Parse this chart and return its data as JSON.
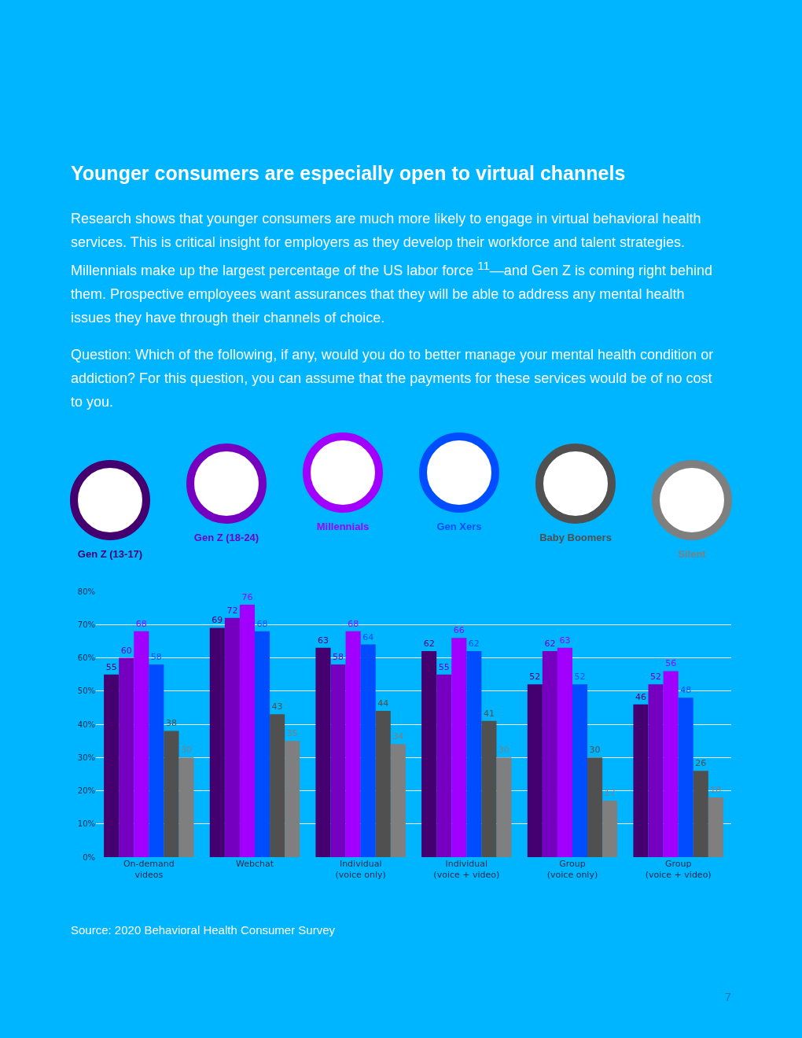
{
  "chart_data": {
    "type": "bar",
    "title": "Younger consumers are especially open to virtual channels",
    "subtitle": "Research shows that younger consumers are much more likely to engage in virtual behavioral health services. This is critical insight for employers as they develop their workforce and talent strategies. Millennials make up the largest percentage of the US labor force $^{11}$—and Gen Z is coming right behind them. Prospective employees want assurances that they will be able to address any mental health issues they have through their channels of choice.",
    "annotations": [
      "Question: Which of the following, if any, would you do to better manage your mental health condition or addiction? For this question, you can assume that the payments for these services would be of no cost to you.",
      "Source: 2020 Behavioral Health Consumer Survey",
      "7"
    ],
    "categories": [
      "On-demand\nvideos",
      "Webchat",
      "Individual\n(voice only)",
      "Individual\n(voice + video)",
      "Group\n(voice only)",
      "Group\n(voice + video)"
    ],
    "series": [
      {
        "name": "Gen Z (13-17)",
        "color": "#44006e",
        "values": [
          55,
          69,
          63,
          62,
          52,
          46
        ]
      },
      {
        "name": "Gen Z (18-24)",
        "color": "#7500c0",
        "values": [
          60,
          72,
          58,
          55,
          62,
          52
        ]
      },
      {
        "name": "Millennials",
        "color": "#a100ff",
        "values": [
          68,
          76,
          68,
          66,
          63,
          56
        ]
      },
      {
        "name": "Gen Xers",
        "color": "#004dff",
        "values": [
          58,
          68,
          64,
          62,
          52,
          48
        ]
      },
      {
        "name": "Baby Boomers",
        "color": "#505050",
        "values": [
          38,
          43,
          44,
          41,
          30,
          26
        ]
      },
      {
        "name": "Silent",
        "color": "#7f7f7f",
        "values": [
          30,
          35,
          34,
          30,
          17,
          18
        ]
      }
    ],
    "ylim": [
      0,
      80
    ],
    "yticks": [
      {
        "value": 0,
        "label": "0%"
      },
      {
        "value": 10,
        "label": "10%"
      },
      {
        "value": 20,
        "label": "20%"
      },
      {
        "value": 30,
        "label": "30%"
      },
      {
        "value": 40,
        "label": "40%"
      },
      {
        "value": 50,
        "label": "50%"
      },
      {
        "value": 60,
        "label": "60%"
      },
      {
        "value": 70,
        "label": "70%"
      },
      {
        "value": 80,
        "label": "80%"
      }
    ],
    "grid": "y",
    "legend": "top",
    "data_labels": true
  }
}
